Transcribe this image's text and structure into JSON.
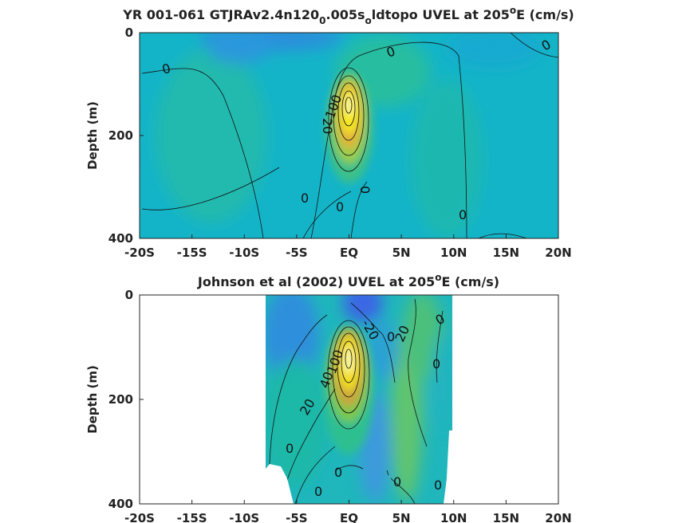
{
  "chart_data": [
    {
      "type": "heatmap",
      "title_main": "YR 001-061 GTJRAv2.4n120",
      "title_sub1": "0",
      "title_mid": ".005s",
      "title_sub2": "o",
      "title_end1": "ldtopo UVEL at 205",
      "title_sup": "o",
      "title_end2": "E (cm/s)",
      "ylabel": "Depth (m)",
      "xticks": [
        "-20S",
        "-15S",
        "-10S",
        "-5S",
        "EQ",
        "5N",
        "10N",
        "15N",
        "20N"
      ],
      "yticks": [
        "0",
        "200",
        "400"
      ],
      "xlim": [
        -20,
        20
      ],
      "ylim": [
        0,
        400
      ],
      "yreversed": true,
      "colors": {
        "low": "#3d6fe0",
        "background": "#14b4c8",
        "mid": "#26be9a",
        "high": "#f6ee1e",
        "peak": "#f8f4a0"
      },
      "core": {
        "lat": 0,
        "depth": 140,
        "max_speed": 100
      },
      "contour_labels": [
        "0",
        "0",
        "0",
        "0",
        "0",
        "0",
        "0",
        "0",
        "20",
        "20",
        "100"
      ]
    },
    {
      "type": "heatmap",
      "title_main": "Johnson et al (2002) UVEL at 205",
      "title_sup": "o",
      "title_end": "E (cm/s)",
      "ylabel": "Depth (m)",
      "xticks": [
        "-20S",
        "-15S",
        "-10S",
        "-5S",
        "EQ",
        "5N",
        "10N",
        "15N",
        "20N"
      ],
      "yticks": [
        "0",
        "200",
        "400"
      ],
      "xlim": [
        -20,
        20
      ],
      "ylim": [
        0,
        400
      ],
      "yreversed": true,
      "data_extent_lat": [
        -8,
        10
      ],
      "colors": {
        "low": "#3d6fe0",
        "background": "#14b4c8",
        "mid": "#26be9a",
        "high": "#f6ee1e",
        "peak": "#f8f4a0"
      },
      "core": {
        "lat": 0,
        "depth": 140,
        "max_speed": 100
      },
      "contour_labels": [
        "0",
        "0",
        "0",
        "0",
        "0",
        "0",
        "0",
        "0",
        "-20",
        "20",
        "20",
        "40",
        "40",
        "100"
      ]
    }
  ]
}
